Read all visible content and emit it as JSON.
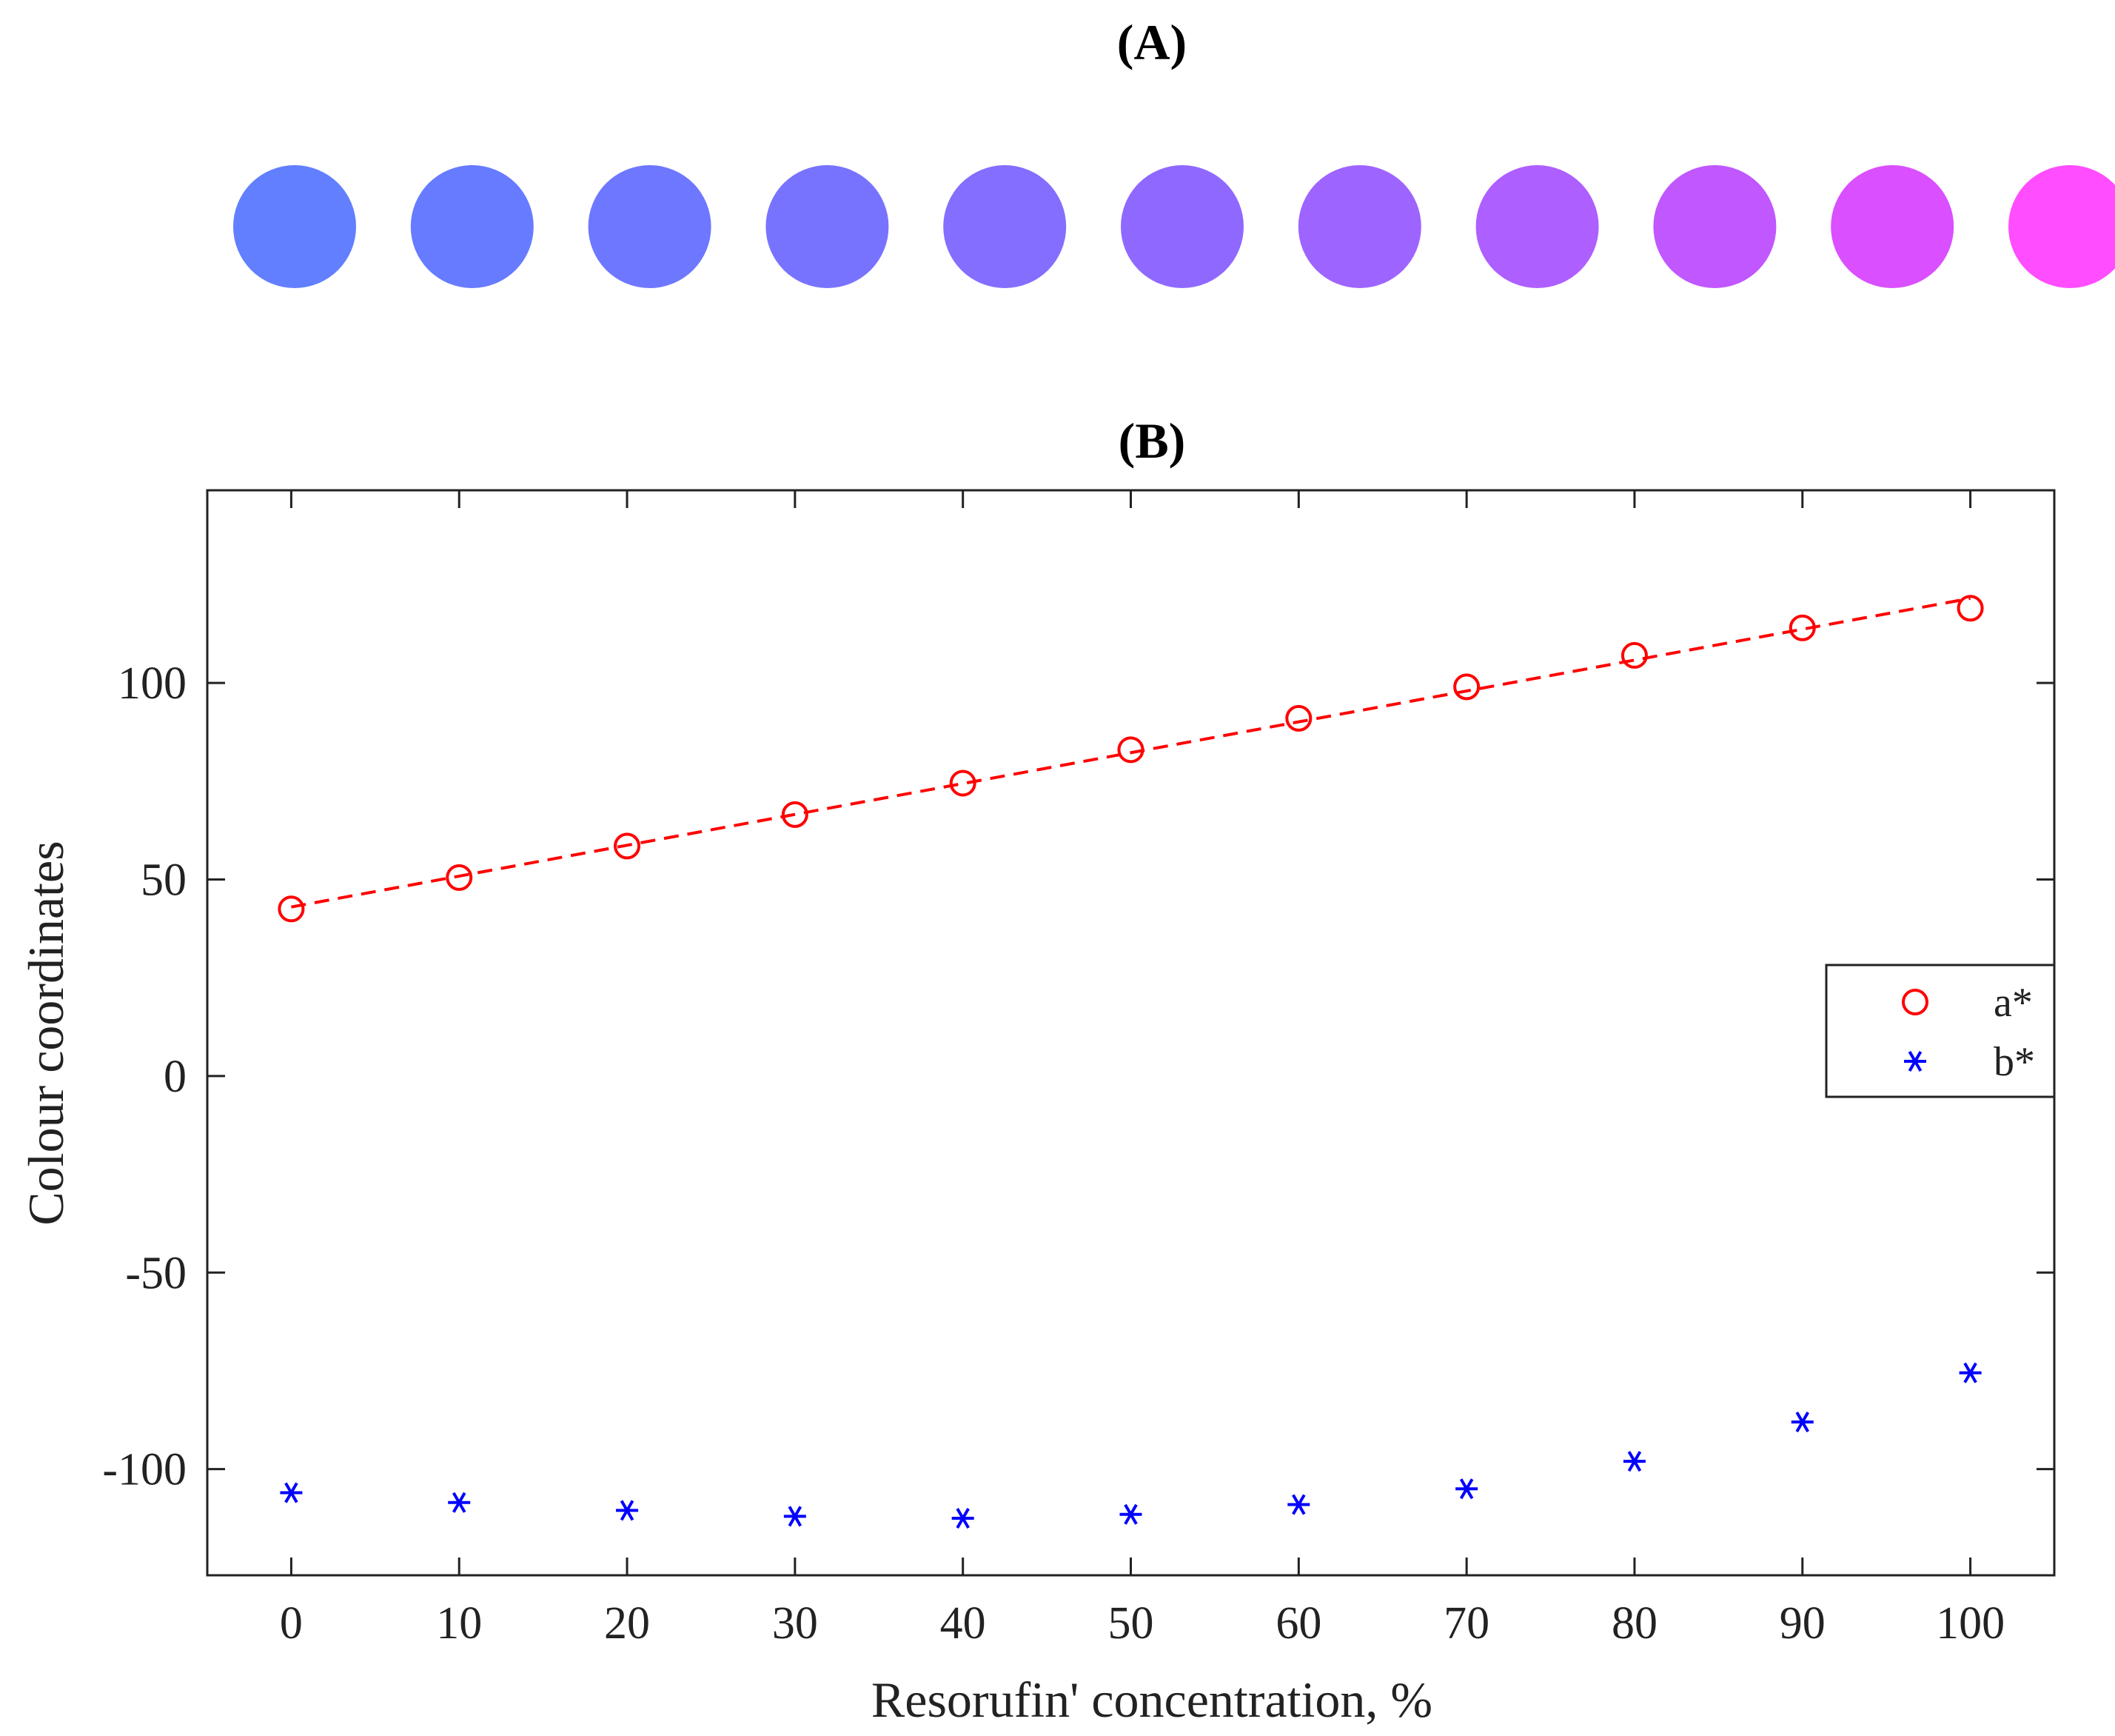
{
  "panel_a": {
    "title": "(A)",
    "swatches": [
      "#617FFF",
      "#667BFF",
      "#6E77FF",
      "#7873FF",
      "#836EFF",
      "#8F69FF",
      "#9E64FF",
      "#AE5FFF",
      "#C057FF",
      "#DA4FFF",
      "#FF4DFF"
    ]
  },
  "chart_data": {
    "type": "scatter",
    "title": "(B)",
    "xlabel": "Resorufin' concentration, %",
    "ylabel": "Colour coordinates",
    "xlim": [
      -5,
      105
    ],
    "ylim": [
      -127,
      149
    ],
    "xticks": [
      0,
      10,
      20,
      30,
      40,
      50,
      60,
      70,
      80,
      90,
      100
    ],
    "yticks": [
      100,
      50,
      0,
      -50,
      -100
    ],
    "x": [
      0,
      10,
      20,
      30,
      40,
      50,
      60,
      70,
      80,
      90,
      100
    ],
    "series": [
      {
        "name": "a*",
        "marker": "circle",
        "color": "#FF0000",
        "values": [
          42.5,
          50.5,
          58.5,
          66.5,
          74.5,
          83,
          91,
          99,
          107,
          114,
          119
        ]
      },
      {
        "name": "b*",
        "marker": "asterisk",
        "color": "#0000FF",
        "values": [
          -106,
          -108.5,
          -110.5,
          -112,
          -112.5,
          -111.5,
          -109,
          -105,
          -98,
          -88,
          -75.5
        ]
      }
    ],
    "fit_line": {
      "series": "a*",
      "style": "dashed",
      "color": "#FF0000",
      "x": [
        0,
        100
      ],
      "y": [
        43,
        121.5
      ]
    },
    "legend": {
      "position": "middle-right",
      "entries": [
        "a*",
        "b*"
      ]
    }
  }
}
